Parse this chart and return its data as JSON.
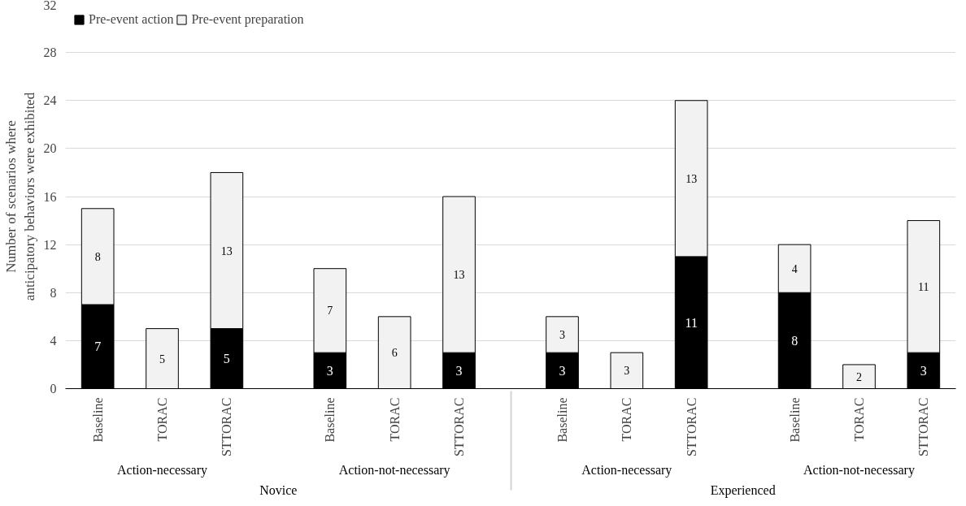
{
  "chart_data": {
    "type": "bar",
    "stacked": true,
    "ylabel": "Number of scenarios where anticipatory behaviors were exhibited",
    "categories": [
      "Baseline",
      "TORAC",
      "STTORAC",
      "Baseline",
      "TORAC",
      "STTORAC",
      "Baseline",
      "TORAC",
      "STTORAC",
      "Baseline",
      "TORAC",
      "STTORAC"
    ],
    "annotations": [
      "Action-necessary",
      "Action-not-necessary",
      "Action-necessary",
      "Action-not-necessary",
      "Novice",
      "Experienced"
    ],
    "series": [
      {
        "name": "Pre-event action",
        "color": "#000000",
        "values": [
          7,
          0,
          5,
          3,
          0,
          3,
          3,
          0,
          11,
          8,
          0,
          3
        ],
        "value_labels": [
          "7",
          null,
          "5",
          "3",
          null,
          "3",
          "3",
          null,
          "11",
          "8",
          null,
          "3"
        ]
      },
      {
        "name": "Pre-event preparation",
        "color": "#f2f2f2",
        "values": [
          8,
          5,
          13,
          7,
          6,
          13,
          3,
          3,
          13,
          4,
          2,
          11
        ],
        "value_labels": [
          "8",
          "5",
          "13",
          "7",
          "6",
          "13",
          "3",
          "3",
          "13",
          "4",
          "2",
          "11"
        ]
      }
    ],
    "ylim": [
      0,
      32
    ],
    "yticks": [
      0,
      4,
      8,
      12,
      16,
      20,
      24,
      28,
      32
    ],
    "grid": "y",
    "legend": "top left"
  }
}
